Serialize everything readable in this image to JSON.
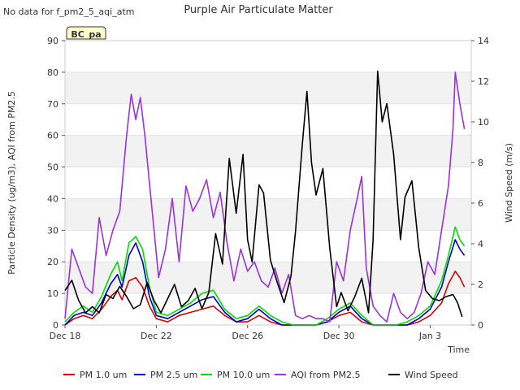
{
  "header": {
    "title": "Purple Air Particulate Matter",
    "no_data_note": "No data for f_pm2_5_aqi_atm",
    "site_badge": "BC_pa"
  },
  "chart_data": {
    "type": "line",
    "title": "Purple Air Particulate Matter",
    "xlabel": "Time",
    "ylabel": "Particle Density (ug/m3), AQI from PM2.5",
    "y2label": "Wind Speed (m/s)",
    "x_range_days": [
      0,
      17.8
    ],
    "x_ticks": [
      {
        "label": "Dec 18",
        "day": 0
      },
      {
        "label": "Dec 22",
        "day": 4
      },
      {
        "label": "Dec 26",
        "day": 8
      },
      {
        "label": "Dec 30",
        "day": 12
      },
      {
        "label": "Jan 3",
        "day": 16
      }
    ],
    "ylim": [
      0,
      90
    ],
    "y_ticks": [
      0,
      10,
      20,
      30,
      40,
      50,
      60,
      70,
      80,
      90
    ],
    "y2lim": [
      0,
      14
    ],
    "y2_ticks": [
      0,
      2,
      4,
      6,
      8,
      10,
      12,
      14
    ],
    "grid": "horizontal bands",
    "legend_position": "bottom",
    "series": [
      {
        "name": "PM 1.0 um",
        "axis": "left",
        "color": "#dd0000",
        "points": [
          [
            0,
            0
          ],
          [
            0.4,
            2
          ],
          [
            0.8,
            3
          ],
          [
            1.2,
            2
          ],
          [
            1.6,
            5
          ],
          [
            2,
            9
          ],
          [
            2.3,
            11
          ],
          [
            2.5,
            8
          ],
          [
            2.8,
            14
          ],
          [
            3.1,
            15
          ],
          [
            3.4,
            12
          ],
          [
            3.7,
            6
          ],
          [
            4,
            2
          ],
          [
            4.5,
            1
          ],
          [
            5,
            3
          ],
          [
            5.5,
            4
          ],
          [
            6,
            5
          ],
          [
            6.5,
            6
          ],
          [
            7,
            3
          ],
          [
            7.5,
            1
          ],
          [
            8,
            1
          ],
          [
            8.5,
            3
          ],
          [
            9,
            1
          ],
          [
            9.5,
            0
          ],
          [
            10,
            0
          ],
          [
            10.5,
            0
          ],
          [
            11,
            0
          ],
          [
            11.5,
            1
          ],
          [
            12,
            3
          ],
          [
            12.5,
            4
          ],
          [
            13,
            1
          ],
          [
            13.5,
            0
          ],
          [
            14,
            0
          ],
          [
            14.5,
            0
          ],
          [
            15,
            0
          ],
          [
            15.5,
            1
          ],
          [
            16,
            3
          ],
          [
            16.5,
            7
          ],
          [
            16.8,
            13
          ],
          [
            17.1,
            17
          ],
          [
            17.3,
            15
          ],
          [
            17.5,
            12
          ]
        ]
      },
      {
        "name": "PM 2.5 um",
        "axis": "left",
        "color": "#0000cc",
        "points": [
          [
            0,
            0
          ],
          [
            0.4,
            3
          ],
          [
            0.8,
            4
          ],
          [
            1.2,
            3
          ],
          [
            1.6,
            7
          ],
          [
            2,
            13
          ],
          [
            2.3,
            16
          ],
          [
            2.5,
            12
          ],
          [
            2.8,
            22
          ],
          [
            3.1,
            26
          ],
          [
            3.4,
            20
          ],
          [
            3.7,
            9
          ],
          [
            4,
            3
          ],
          [
            4.5,
            2
          ],
          [
            5,
            4
          ],
          [
            5.5,
            6
          ],
          [
            6,
            8
          ],
          [
            6.5,
            9
          ],
          [
            7,
            4
          ],
          [
            7.5,
            1
          ],
          [
            8,
            2
          ],
          [
            8.5,
            5
          ],
          [
            9,
            2
          ],
          [
            9.5,
            0
          ],
          [
            10,
            0
          ],
          [
            10.5,
            0
          ],
          [
            11,
            0
          ],
          [
            11.5,
            1
          ],
          [
            12,
            4
          ],
          [
            12.5,
            6
          ],
          [
            13,
            2
          ],
          [
            13.5,
            0
          ],
          [
            14,
            0
          ],
          [
            14.5,
            0
          ],
          [
            15,
            0
          ],
          [
            15.5,
            2
          ],
          [
            16,
            5
          ],
          [
            16.5,
            12
          ],
          [
            16.8,
            20
          ],
          [
            17.1,
            27
          ],
          [
            17.3,
            24
          ],
          [
            17.5,
            22
          ]
        ]
      },
      {
        "name": "PM 10.0 um",
        "axis": "left",
        "color": "#00dd00",
        "points": [
          [
            0,
            1
          ],
          [
            0.4,
            4
          ],
          [
            0.8,
            6
          ],
          [
            1.2,
            4
          ],
          [
            1.6,
            9
          ],
          [
            2,
            16
          ],
          [
            2.3,
            20
          ],
          [
            2.5,
            14
          ],
          [
            2.8,
            26
          ],
          [
            3.1,
            28
          ],
          [
            3.4,
            24
          ],
          [
            3.7,
            12
          ],
          [
            4,
            4
          ],
          [
            4.5,
            3
          ],
          [
            5,
            5
          ],
          [
            5.5,
            7
          ],
          [
            6,
            10
          ],
          [
            6.5,
            11
          ],
          [
            7,
            5
          ],
          [
            7.5,
            2
          ],
          [
            8,
            3
          ],
          [
            8.5,
            6
          ],
          [
            9,
            3
          ],
          [
            9.5,
            1
          ],
          [
            10,
            0
          ],
          [
            10.5,
            0
          ],
          [
            11,
            0
          ],
          [
            11.5,
            2
          ],
          [
            12,
            5
          ],
          [
            12.5,
            7
          ],
          [
            13,
            3
          ],
          [
            13.5,
            0
          ],
          [
            14,
            0
          ],
          [
            14.5,
            0
          ],
          [
            15,
            1
          ],
          [
            15.5,
            3
          ],
          [
            16,
            6
          ],
          [
            16.5,
            14
          ],
          [
            16.8,
            22
          ],
          [
            17.1,
            31
          ],
          [
            17.3,
            27
          ],
          [
            17.5,
            25
          ]
        ]
      },
      {
        "name": "AQI from PM2.5",
        "axis": "left",
        "color": "#9933dd",
        "points": [
          [
            0,
            2
          ],
          [
            0.3,
            24
          ],
          [
            0.6,
            18
          ],
          [
            0.9,
            12
          ],
          [
            1.2,
            10
          ],
          [
            1.5,
            34
          ],
          [
            1.8,
            22
          ],
          [
            2.1,
            30
          ],
          [
            2.4,
            36
          ],
          [
            2.7,
            60
          ],
          [
            2.9,
            73
          ],
          [
            3.1,
            65
          ],
          [
            3.3,
            72
          ],
          [
            3.5,
            60
          ],
          [
            3.7,
            45
          ],
          [
            3.9,
            30
          ],
          [
            4.1,
            15
          ],
          [
            4.4,
            24
          ],
          [
            4.7,
            40
          ],
          [
            5,
            20
          ],
          [
            5.3,
            44
          ],
          [
            5.6,
            36
          ],
          [
            5.9,
            40
          ],
          [
            6.2,
            46
          ],
          [
            6.5,
            34
          ],
          [
            6.8,
            42
          ],
          [
            7.1,
            26
          ],
          [
            7.4,
            14
          ],
          [
            7.7,
            24
          ],
          [
            8,
            17
          ],
          [
            8.3,
            20
          ],
          [
            8.6,
            14
          ],
          [
            8.9,
            12
          ],
          [
            9.2,
            18
          ],
          [
            9.5,
            10
          ],
          [
            9.8,
            16
          ],
          [
            10.1,
            3
          ],
          [
            10.4,
            2
          ],
          [
            10.7,
            3
          ],
          [
            11,
            2
          ],
          [
            11.3,
            2
          ],
          [
            11.6,
            1
          ],
          [
            11.9,
            20
          ],
          [
            12.2,
            14
          ],
          [
            12.5,
            30
          ],
          [
            12.8,
            40
          ],
          [
            13,
            47
          ],
          [
            13.2,
            18
          ],
          [
            13.5,
            6
          ],
          [
            13.8,
            3
          ],
          [
            14.1,
            1
          ],
          [
            14.4,
            10
          ],
          [
            14.7,
            4
          ],
          [
            15,
            2
          ],
          [
            15.3,
            4
          ],
          [
            15.6,
            10
          ],
          [
            15.9,
            20
          ],
          [
            16.2,
            16
          ],
          [
            16.5,
            30
          ],
          [
            16.8,
            44
          ],
          [
            17,
            62
          ],
          [
            17.1,
            80
          ],
          [
            17.3,
            70
          ],
          [
            17.5,
            62
          ]
        ]
      },
      {
        "name": "Wind Speed",
        "axis": "right",
        "color": "#000000",
        "points": [
          [
            0,
            1.7
          ],
          [
            0.3,
            2.2
          ],
          [
            0.6,
            1.2
          ],
          [
            0.9,
            0.6
          ],
          [
            1.2,
            0.9
          ],
          [
            1.5,
            0.6
          ],
          [
            1.8,
            1.5
          ],
          [
            2.1,
            1.3
          ],
          [
            2.4,
            1.9
          ],
          [
            2.7,
            1.4
          ],
          [
            3,
            0.8
          ],
          [
            3.3,
            1.0
          ],
          [
            3.6,
            2.1
          ],
          [
            3.9,
            1.2
          ],
          [
            4.2,
            0.6
          ],
          [
            4.5,
            1.3
          ],
          [
            4.8,
            2.0
          ],
          [
            5.1,
            0.9
          ],
          [
            5.4,
            1.2
          ],
          [
            5.7,
            1.8
          ],
          [
            6,
            0.8
          ],
          [
            6.3,
            1.6
          ],
          [
            6.6,
            4.5
          ],
          [
            6.9,
            3.0
          ],
          [
            7.2,
            8.2
          ],
          [
            7.5,
            5.5
          ],
          [
            7.8,
            8.4
          ],
          [
            8,
            4.2
          ],
          [
            8.2,
            3.1
          ],
          [
            8.5,
            6.9
          ],
          [
            8.7,
            6.5
          ],
          [
            9,
            3.2
          ],
          [
            9.3,
            2.1
          ],
          [
            9.6,
            1.1
          ],
          [
            9.9,
            2.4
          ],
          [
            10.1,
            4.6
          ],
          [
            10.4,
            8.9
          ],
          [
            10.6,
            11.5
          ],
          [
            10.8,
            8.0
          ],
          [
            11,
            6.4
          ],
          [
            11.3,
            7.7
          ],
          [
            11.6,
            3.8
          ],
          [
            11.9,
            0.9
          ],
          [
            12.1,
            1.6
          ],
          [
            12.4,
            0.7
          ],
          [
            12.7,
            1.4
          ],
          [
            13,
            2.3
          ],
          [
            13.3,
            0.6
          ],
          [
            13.5,
            4.2
          ],
          [
            13.7,
            12.5
          ],
          [
            13.9,
            10.0
          ],
          [
            14.1,
            10.9
          ],
          [
            14.4,
            8.4
          ],
          [
            14.7,
            4.2
          ],
          [
            14.9,
            6.3
          ],
          [
            15.2,
            7.1
          ],
          [
            15.5,
            3.8
          ],
          [
            15.8,
            1.7
          ],
          [
            16.1,
            1.3
          ],
          [
            16.4,
            1.2
          ],
          [
            16.7,
            1.4
          ],
          [
            17,
            1.5
          ],
          [
            17.2,
            1.1
          ],
          [
            17.4,
            0.4
          ]
        ]
      }
    ]
  }
}
